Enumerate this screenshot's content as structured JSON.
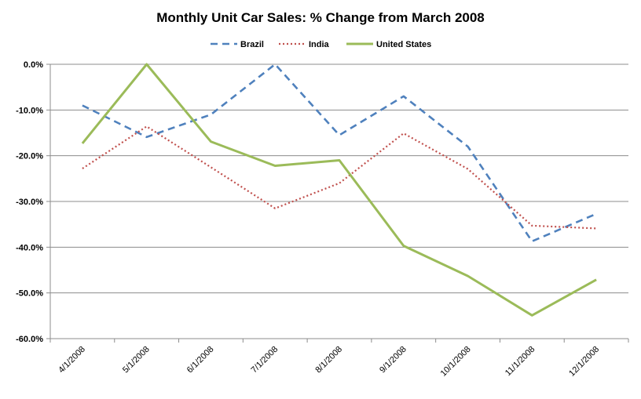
{
  "chart_data": {
    "type": "line",
    "title": "Monthly Unit Car Sales: % Change from March 2008",
    "xlabel": "",
    "ylabel": "",
    "categories": [
      "4/1/2008",
      "5/1/2008",
      "6/1/2008",
      "7/1/2008",
      "8/1/2008",
      "9/1/2008",
      "10/1/2008",
      "11/1/2008",
      "12/1/2008"
    ],
    "ylim": [
      -60,
      0
    ],
    "yticks": [
      0,
      -10,
      -20,
      -30,
      -40,
      -50,
      -60
    ],
    "ytick_labels": [
      "0.0%",
      "-10.0%",
      "-20.0%",
      "-30.0%",
      "-40.0%",
      "-50.0%",
      "-60.0%"
    ],
    "grid": true,
    "legend": "top",
    "series": [
      {
        "name": "Brazil",
        "color": "#4F81BD",
        "style": "dashed",
        "values": [
          -9.0,
          -15.9,
          -11.0,
          0.0,
          -15.5,
          -7.0,
          -18.0,
          -38.7,
          -32.7
        ]
      },
      {
        "name": "India",
        "color": "#C0504D",
        "style": "dotted",
        "values": [
          -22.8,
          -13.6,
          -22.5,
          -31.5,
          -26.0,
          -15.1,
          -22.9,
          -35.3,
          -35.9
        ]
      },
      {
        "name": "United States",
        "color": "#9BBB59",
        "style": "solid",
        "values": [
          -17.3,
          0.0,
          -16.9,
          -22.2,
          -21.0,
          -39.7,
          -46.3,
          -54.9,
          -47.1
        ]
      }
    ]
  }
}
